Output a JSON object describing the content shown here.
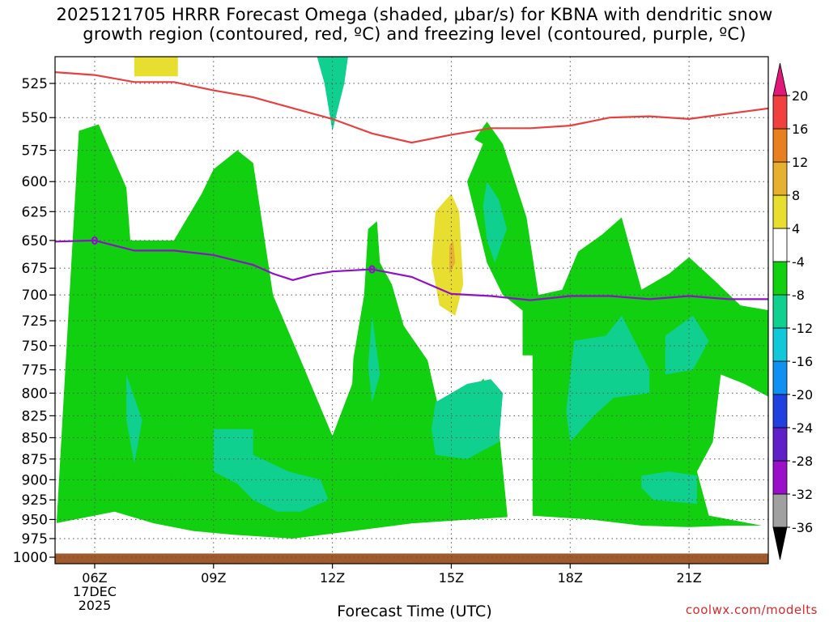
{
  "title": {
    "line1": "2025121705 HRRR Forecast Omega (shaded, μbar/s) for KBNA with dendritic snow",
    "line2": "growth region (contoured, red, ºC) and freezing level (contoured, purple, ºC)"
  },
  "credit": "coolwx.com/modelts",
  "chart_data": {
    "type": "heatmap",
    "xlabel": "Forecast Time (UTC)",
    "x_ticks": [
      {
        "hour": 6,
        "label": "06Z",
        "sub": [
          "17DEC",
          "2025"
        ]
      },
      {
        "hour": 9,
        "label": "09Z"
      },
      {
        "hour": 12,
        "label": "12Z"
      },
      {
        "hour": 15,
        "label": "15Z"
      },
      {
        "hour": 18,
        "label": "18Z"
      },
      {
        "hour": 21,
        "label": "21Z"
      }
    ],
    "xlim": [
      5,
      23
    ],
    "y_scale": "log",
    "ylim": [
      1000,
      500
    ],
    "y_ticks": [
      525,
      550,
      575,
      600,
      625,
      650,
      675,
      700,
      725,
      750,
      775,
      800,
      825,
      850,
      875,
      900,
      925,
      950,
      975,
      1000
    ],
    "grid": true,
    "colorbar": {
      "levels": [
        -36,
        -32,
        -28,
        -24,
        -20,
        -16,
        -12,
        -8,
        -4,
        4,
        8,
        12,
        16,
        20
      ],
      "labels": [
        "20",
        "16",
        "12",
        "8",
        "4",
        "-4",
        "-8",
        "-12",
        "-16",
        "-20",
        "-24",
        "-28",
        "-32",
        "-36"
      ],
      "colors": [
        "#a0a0a0",
        "#9a10c8",
        "#6020c8",
        "#2040e0",
        "#1090f0",
        "#10c8d8",
        "#10d090",
        "#10d010",
        "#ffffff",
        "#e8de30",
        "#e8b030",
        "#e88020",
        "#f04040"
      ],
      "low_color": "#000000",
      "high_color": "#e01878"
    },
    "regions": [
      {
        "level": "-8 to -4",
        "color": "#10d010",
        "polygon": [
          [
            5.6,
            560
          ],
          [
            6.1,
            555
          ],
          [
            6.8,
            605
          ],
          [
            6.9,
            650
          ],
          [
            8,
            650
          ],
          [
            8.7,
            610
          ],
          [
            9,
            590
          ],
          [
            9.6,
            575
          ],
          [
            10,
            585
          ],
          [
            10.5,
            700
          ],
          [
            11.2,
            765
          ],
          [
            12,
            848
          ],
          [
            12.5,
            790
          ],
          [
            12.6,
            700
          ],
          [
            12.7,
            625
          ],
          [
            13.1,
            620
          ],
          [
            13.2,
            670
          ],
          [
            13.5,
            690
          ],
          [
            13.8,
            730
          ],
          [
            14.4,
            765
          ],
          [
            14.8,
            840
          ],
          [
            15.3,
            810
          ],
          [
            15.9,
            780
          ],
          [
            15.7,
            710
          ],
          [
            15.4,
            640
          ],
          [
            15,
            595
          ],
          [
            15.5,
            570
          ],
          [
            15.9,
            553
          ],
          [
            16.3,
            570
          ],
          [
            16.9,
            630
          ],
          [
            17.2,
            700
          ],
          [
            17.8,
            695
          ],
          [
            18.2,
            660
          ],
          [
            18.8,
            645
          ],
          [
            19.3,
            630
          ],
          [
            19.8,
            695
          ],
          [
            20.5,
            680
          ],
          [
            21,
            665
          ],
          [
            21.6,
            685
          ],
          [
            22.3,
            710
          ],
          [
            23.05,
            715
          ],
          [
            23.05,
            805
          ],
          [
            22.4,
            790
          ],
          [
            21.8,
            780
          ],
          [
            21.6,
            855
          ],
          [
            21.2,
            890
          ],
          [
            21.5,
            945
          ],
          [
            23.05,
            960
          ],
          [
            23.05,
            990
          ],
          [
            5,
            990
          ]
        ]
      },
      {
        "level": "white gap",
        "color": "#ffffff",
        "polygon": [
          [
            9.5,
            505
          ],
          [
            10.5,
            505
          ],
          [
            11,
            560
          ],
          [
            11.6,
            595
          ],
          [
            12,
            620
          ],
          [
            12.4,
            630
          ],
          [
            13.7,
            610
          ],
          [
            14.6,
            570
          ],
          [
            15.2,
            560
          ],
          [
            15.8,
            570
          ],
          [
            15.4,
            600
          ],
          [
            15.9,
            670
          ],
          [
            16.3,
            700
          ],
          [
            16.8,
            715
          ],
          [
            16.8,
            760
          ],
          [
            17.05,
            760
          ],
          [
            17.05,
            990
          ],
          [
            16.5,
            990
          ],
          [
            16.2,
            840
          ],
          [
            15.6,
            755
          ],
          [
            15.1,
            700
          ],
          [
            14.4,
            680
          ],
          [
            13.9,
            640
          ],
          [
            13.3,
            628
          ],
          [
            12.9,
            640
          ],
          [
            12.8,
            700
          ],
          [
            12.5,
            770
          ],
          [
            12.15,
            680
          ],
          [
            11.8,
            640
          ],
          [
            11.5,
            620
          ],
          [
            11,
            612
          ],
          [
            10.3,
            560
          ],
          [
            9.9,
            525
          ]
        ]
      },
      {
        "level": "-4 to 4 low",
        "color": "#ffffff",
        "polygon": [
          [
            5,
            955
          ],
          [
            6.5,
            940
          ],
          [
            7.5,
            955
          ],
          [
            8.5,
            965
          ],
          [
            9.5,
            970
          ],
          [
            11,
            975
          ],
          [
            12.5,
            965
          ],
          [
            14,
            955
          ],
          [
            15.5,
            950
          ],
          [
            17,
            945
          ],
          [
            18.5,
            950
          ],
          [
            19.8,
            958
          ],
          [
            21,
            960
          ],
          [
            22,
            958
          ],
          [
            23.05,
            958
          ],
          [
            23.05,
            1000
          ],
          [
            5,
            1000
          ]
        ]
      },
      {
        "level": "-12 to -8",
        "color": "#10d090",
        "polygon": [
          [
            9,
            840
          ],
          [
            10,
            840
          ],
          [
            10,
            870
          ],
          [
            10.9,
            890
          ],
          [
            11.7,
            900
          ],
          [
            11.9,
            925
          ],
          [
            11.2,
            940
          ],
          [
            10.6,
            940
          ],
          [
            10,
            925
          ],
          [
            9.6,
            905
          ],
          [
            9,
            890
          ]
        ]
      },
      {
        "level": "-12 to -8",
        "color": "#10d090",
        "polygon": [
          [
            6.8,
            780
          ],
          [
            7.2,
            830
          ],
          [
            7,
            880
          ],
          [
            6.8,
            830
          ]
        ]
      },
      {
        "level": "-12 to -8",
        "color": "#10d090",
        "polygon": [
          [
            13,
            720
          ],
          [
            13.2,
            780
          ],
          [
            13,
            810
          ],
          [
            12.9,
            770
          ]
        ]
      },
      {
        "level": "-12 to -8",
        "color": "#10d090",
        "polygon": [
          [
            14.6,
            810
          ],
          [
            15.4,
            790
          ],
          [
            16,
            785
          ],
          [
            16.3,
            800
          ],
          [
            16.2,
            855
          ],
          [
            15.4,
            875
          ],
          [
            14.6,
            870
          ],
          [
            14.5,
            840
          ]
        ]
      },
      {
        "level": "-12 to -8",
        "color": "#10d090",
        "polygon": [
          [
            15.9,
            600
          ],
          [
            16.2,
            615
          ],
          [
            16.4,
            640
          ],
          [
            16.1,
            670
          ],
          [
            15.9,
            650
          ],
          [
            15.8,
            620
          ]
        ]
      },
      {
        "level": "-12 to -8",
        "color": "#10d090",
        "polygon": [
          [
            18.1,
            745
          ],
          [
            18.9,
            740
          ],
          [
            19.3,
            720
          ],
          [
            20,
            775
          ],
          [
            20,
            800
          ],
          [
            19.1,
            805
          ],
          [
            18.6,
            825
          ],
          [
            18,
            855
          ],
          [
            17.9,
            820
          ]
        ]
      },
      {
        "level": "-12 to -8",
        "color": "#10d090",
        "polygon": [
          [
            20.4,
            740
          ],
          [
            21.1,
            720
          ],
          [
            21.5,
            745
          ],
          [
            21.1,
            775
          ],
          [
            20.4,
            780
          ]
        ]
      },
      {
        "level": "-12 to -8",
        "color": "#10d090",
        "polygon": [
          [
            19.8,
            895
          ],
          [
            20.5,
            890
          ],
          [
            21.2,
            895
          ],
          [
            21.2,
            930
          ],
          [
            20.1,
            925
          ],
          [
            19.8,
            910
          ]
        ]
      },
      {
        "level": "-12 to -8",
        "color": "#10d090",
        "polygon": [
          [
            11.6,
            505
          ],
          [
            12.4,
            505
          ],
          [
            12.3,
            525
          ],
          [
            12,
            560
          ],
          [
            11.8,
            525
          ]
        ]
      },
      {
        "level": "4 to 8",
        "color": "#e8de30",
        "polygon": [
          [
            7,
            505
          ],
          [
            8.1,
            505
          ],
          [
            8.1,
            520
          ],
          [
            7,
            520
          ]
        ]
      },
      {
        "level": "4 to 8",
        "color": "#e8de30",
        "polygon": [
          [
            14.6,
            625
          ],
          [
            15,
            610
          ],
          [
            15.2,
            625
          ],
          [
            15.3,
            690
          ],
          [
            15.1,
            720
          ],
          [
            14.7,
            710
          ],
          [
            14.5,
            670
          ]
        ]
      },
      {
        "level": "8 to 12",
        "color": "#e8b030",
        "polygon": [
          [
            14.95,
            655
          ],
          [
            15.05,
            650
          ],
          [
            15.1,
            670
          ],
          [
            14.95,
            680
          ]
        ]
      }
    ],
    "dendritic_growth_line": {
      "color": "#e84040",
      "points": [
        [
          5,
          517
        ],
        [
          6,
          519
        ],
        [
          7,
          524
        ],
        [
          8,
          524
        ],
        [
          9,
          530
        ],
        [
          10,
          535
        ],
        [
          11,
          543
        ],
        [
          12,
          551
        ],
        [
          13,
          562
        ],
        [
          14,
          569
        ],
        [
          15,
          563
        ],
        [
          16,
          558
        ],
        [
          17,
          558
        ],
        [
          18,
          556
        ],
        [
          19,
          550
        ],
        [
          20,
          549
        ],
        [
          21,
          551
        ],
        [
          22,
          547
        ],
        [
          23.05,
          543
        ]
      ]
    },
    "freezing_level_line": {
      "color": "#9010c8",
      "label": "0",
      "label_hours": [
        6,
        13
      ],
      "points": [
        [
          5,
          651
        ],
        [
          6,
          650
        ],
        [
          7,
          659
        ],
        [
          8,
          659
        ],
        [
          9,
          663
        ],
        [
          10,
          672
        ],
        [
          10.5,
          680
        ],
        [
          11,
          686
        ],
        [
          11.5,
          681
        ],
        [
          12,
          678
        ],
        [
          13,
          676
        ],
        [
          14,
          683
        ],
        [
          15,
          699
        ],
        [
          16,
          701
        ],
        [
          17,
          705
        ],
        [
          18,
          701
        ],
        [
          19,
          701
        ],
        [
          20,
          704
        ],
        [
          21,
          701
        ],
        [
          22,
          704
        ],
        [
          23.05,
          704
        ]
      ]
    },
    "ground": {
      "pressure": 995,
      "color": "#a05a2c"
    }
  }
}
